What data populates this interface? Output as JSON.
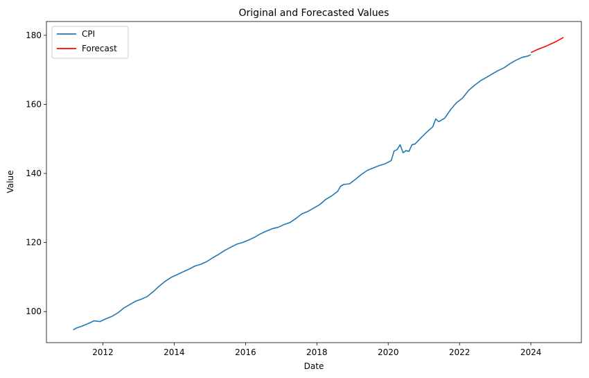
{
  "chart_data": {
    "type": "line",
    "title": "Original and Forecasted Values",
    "xlabel": "Date",
    "ylabel": "Value",
    "xlim": [
      "2010-06",
      "2025-06"
    ],
    "ylim": [
      91,
      184
    ],
    "x_ticks": [
      "2012",
      "2014",
      "2016",
      "2018",
      "2020",
      "2022",
      "2024"
    ],
    "y_ticks": [
      100,
      120,
      140,
      160,
      180
    ],
    "grid": false,
    "legend_position": "top-left",
    "series": [
      {
        "name": "CPI",
        "color": "#1f77b4",
        "points": [
          [
            "2011-03",
            94.7
          ],
          [
            "2011-04",
            95.2
          ],
          [
            "2011-06",
            95.8
          ],
          [
            "2011-08",
            96.5
          ],
          [
            "2011-10",
            97.3
          ],
          [
            "2011-12",
            97.1
          ],
          [
            "2012-02",
            97.9
          ],
          [
            "2012-04",
            98.6
          ],
          [
            "2012-06",
            99.6
          ],
          [
            "2012-08",
            101.0
          ],
          [
            "2012-10",
            102.0
          ],
          [
            "2012-12",
            103.0
          ],
          [
            "2013-02",
            103.6
          ],
          [
            "2013-04",
            104.4
          ],
          [
            "2013-06",
            105.8
          ],
          [
            "2013-08",
            107.4
          ],
          [
            "2013-10",
            108.8
          ],
          [
            "2013-12",
            109.9
          ],
          [
            "2014-02",
            110.7
          ],
          [
            "2014-04",
            111.5
          ],
          [
            "2014-06",
            112.3
          ],
          [
            "2014-08",
            113.2
          ],
          [
            "2014-10",
            113.7
          ],
          [
            "2014-12",
            114.5
          ],
          [
            "2015-02",
            115.6
          ],
          [
            "2015-04",
            116.6
          ],
          [
            "2015-06",
            117.7
          ],
          [
            "2015-08",
            118.6
          ],
          [
            "2015-10",
            119.5
          ],
          [
            "2015-12",
            120.0
          ],
          [
            "2016-02",
            120.7
          ],
          [
            "2016-04",
            121.5
          ],
          [
            "2016-06",
            122.5
          ],
          [
            "2016-08",
            123.3
          ],
          [
            "2016-10",
            124.0
          ],
          [
            "2016-12",
            124.4
          ],
          [
            "2017-02",
            125.2
          ],
          [
            "2017-04",
            125.8
          ],
          [
            "2017-06",
            127.0
          ],
          [
            "2017-08",
            128.3
          ],
          [
            "2017-10",
            129.0
          ],
          [
            "2017-12",
            130.0
          ],
          [
            "2018-02",
            131.0
          ],
          [
            "2018-04",
            132.5
          ],
          [
            "2018-06",
            133.5
          ],
          [
            "2018-08",
            134.8
          ],
          [
            "2018-09",
            136.3
          ],
          [
            "2018-10",
            136.8
          ],
          [
            "2018-12",
            137.0
          ],
          [
            "2019-02",
            138.3
          ],
          [
            "2019-04",
            139.7
          ],
          [
            "2019-06",
            140.9
          ],
          [
            "2019-08",
            141.6
          ],
          [
            "2019-10",
            142.3
          ],
          [
            "2019-12",
            142.8
          ],
          [
            "2020-02",
            143.7
          ],
          [
            "2020-03",
            146.5
          ],
          [
            "2020-04",
            146.9
          ],
          [
            "2020-05",
            148.3
          ],
          [
            "2020-06",
            146.0
          ],
          [
            "2020-07",
            146.6
          ],
          [
            "2020-08",
            146.4
          ],
          [
            "2020-09",
            148.3
          ],
          [
            "2020-10",
            148.5
          ],
          [
            "2020-12",
            150.3
          ],
          [
            "2021-02",
            152.0
          ],
          [
            "2021-04",
            153.5
          ],
          [
            "2021-05",
            155.8
          ],
          [
            "2021-06",
            155.0
          ],
          [
            "2021-08",
            156.0
          ],
          [
            "2021-10",
            158.5
          ],
          [
            "2021-12",
            160.5
          ],
          [
            "2022-02",
            161.8
          ],
          [
            "2022-04",
            164.0
          ],
          [
            "2022-06",
            165.5
          ],
          [
            "2022-08",
            166.8
          ],
          [
            "2022-10",
            167.8
          ],
          [
            "2022-12",
            168.8
          ],
          [
            "2023-02",
            169.8
          ],
          [
            "2023-04",
            170.6
          ],
          [
            "2023-06",
            171.8
          ],
          [
            "2023-08",
            172.8
          ],
          [
            "2023-10",
            173.6
          ],
          [
            "2023-12",
            174.0
          ],
          [
            "2024-01",
            174.4
          ]
        ]
      },
      {
        "name": "Forecast",
        "color": "#ff0000",
        "points": [
          [
            "2024-01",
            175.0
          ],
          [
            "2024-03",
            175.8
          ],
          [
            "2024-06",
            176.8
          ],
          [
            "2024-09",
            178.0
          ],
          [
            "2024-12",
            179.4
          ]
        ]
      }
    ]
  }
}
